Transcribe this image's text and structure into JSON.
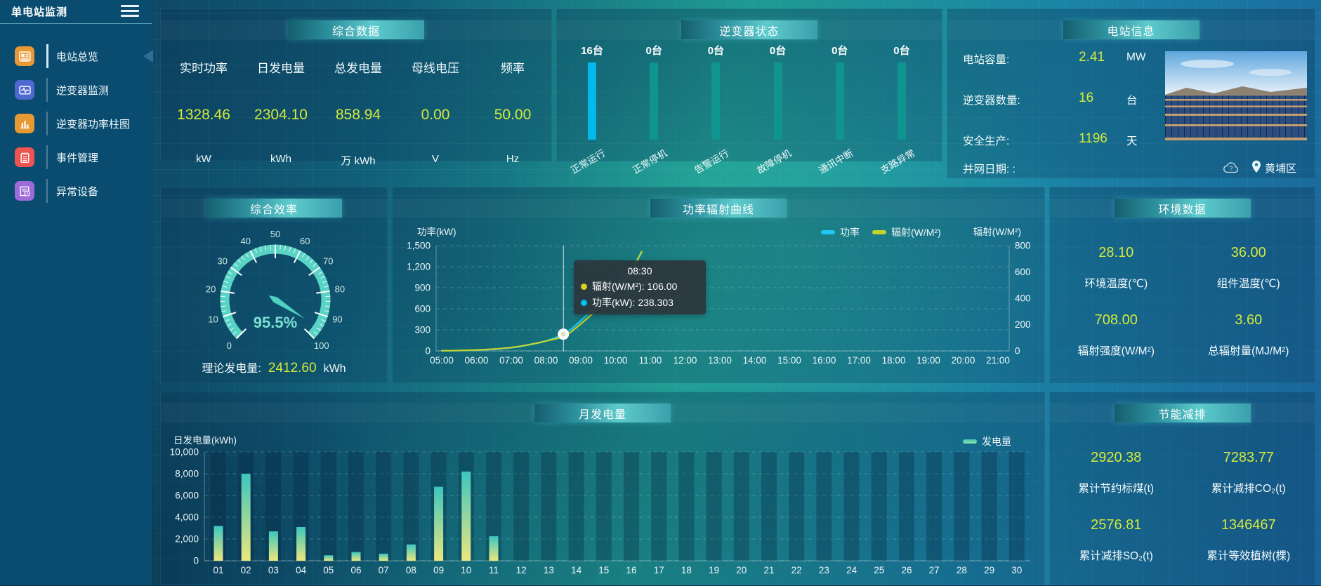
{
  "app": {
    "title": "单电站监测"
  },
  "sidebar": {
    "items": [
      {
        "label": "电站总览",
        "color": "#e79a33",
        "active": true
      },
      {
        "label": "逆变器监测",
        "color": "#5069d0",
        "active": false
      },
      {
        "label": "逆变器功率柱图",
        "color": "#e79a33",
        "active": false
      },
      {
        "label": "事件管理",
        "color": "#ef5350",
        "active": false
      },
      {
        "label": "异常设备",
        "color": "#9c6bd8",
        "active": false
      }
    ]
  },
  "summary": {
    "title": "综合数据",
    "metrics": [
      {
        "label": "实时功率",
        "value": "1328.46",
        "unit": "kW"
      },
      {
        "label": "日发电量",
        "value": "2304.10",
        "unit": "kWh"
      },
      {
        "label": "总发电量",
        "value": "858.94",
        "unit": "万 kWh"
      },
      {
        "label": "母线电压",
        "value": "0.00",
        "unit": "V"
      },
      {
        "label": "频率",
        "value": "50.00",
        "unit": "Hz"
      }
    ]
  },
  "inverter_status": {
    "title": "逆变器状态",
    "bars": [
      {
        "count": "16台",
        "label": "正常运行",
        "color": "#00b7ee"
      },
      {
        "count": "0台",
        "label": "正常停机",
        "color": "#0f948f"
      },
      {
        "count": "0台",
        "label": "告警运行",
        "color": "#0f948f"
      },
      {
        "count": "0台",
        "label": "故障停机",
        "color": "#0f948f"
      },
      {
        "count": "0台",
        "label": "通讯中断",
        "color": "#0f948f"
      },
      {
        "count": "0台",
        "label": "支路异常",
        "color": "#0f948f"
      }
    ]
  },
  "station_info": {
    "title": "电站信息",
    "rows": [
      {
        "label": "电站容量:",
        "value": "2.41",
        "unit": "MW"
      },
      {
        "label": "逆变器数量:",
        "value": "16",
        "unit": "台"
      },
      {
        "label": "安全生产:",
        "value": "1196",
        "unit": "天"
      },
      {
        "label": "并网日期: :",
        "value": "",
        "unit": ""
      }
    ],
    "location": "黄埔区"
  },
  "efficiency": {
    "title": "综合效率",
    "gauge": {
      "min": 0,
      "max": 100,
      "value": 95.5,
      "display": "95.5%",
      "color": "#58d3c5"
    },
    "footer": {
      "label": "理论发电量:",
      "value": "2412.60",
      "unit": "kWh"
    }
  },
  "power_curve": {
    "title": "功率辐射曲线"
  },
  "environment": {
    "title": "环境数据",
    "items": [
      {
        "value": "28.10",
        "label": "环境温度(℃)"
      },
      {
        "value": "36.00",
        "label": "组件温度(℃)"
      },
      {
        "value": "708.00",
        "label": "辐射强度(W/M²)"
      },
      {
        "value": "3.60",
        "label": "总辐射量(MJ/M²)"
      }
    ]
  },
  "monthly": {
    "title": "月发电量"
  },
  "saving": {
    "title": "节能减排",
    "items": [
      {
        "value": "2920.38",
        "label": "累计节约标煤(t)"
      },
      {
        "value": "7283.77",
        "label": "累计减排CO₂(t)"
      },
      {
        "value": "2576.81",
        "label": "累计减排SO₂(t)"
      },
      {
        "value": "1346467",
        "label": "累计等效植树(棵)"
      }
    ]
  },
  "chart_data": [
    {
      "id": "power_radiation",
      "type": "line",
      "title": "功率辐射曲线",
      "ylabel_left": "功率(kW)",
      "ylabel_right": "辐射(W/M²)",
      "ylim_left": [
        0,
        1500
      ],
      "yticks_left": [
        "1,500",
        "1,200",
        "900",
        "600",
        "300",
        "0"
      ],
      "ylim_right": [
        0,
        800
      ],
      "yticks_right": [
        "800",
        "600",
        "400",
        "200",
        "0"
      ],
      "xticks": [
        "05:00",
        "06:00",
        "07:00",
        "08:00",
        "09:00",
        "10:00",
        "11:00",
        "12:00",
        "13:00",
        "14:00",
        "15:00",
        "16:00",
        "17:00",
        "18:00",
        "19:00",
        "20:00",
        "21:00"
      ],
      "legend": [
        {
          "name": "功率",
          "color": "#1ec9f2"
        },
        {
          "name": "辐射(W/M²)",
          "color": "#c6d32c"
        }
      ],
      "series": [
        {
          "name": "功率",
          "axis": "left",
          "color": "#1ec9f2",
          "points": [
            [
              5,
              2
            ],
            [
              5.25,
              3
            ],
            [
              5.5,
              5
            ],
            [
              5.75,
              8
            ],
            [
              6,
              12
            ],
            [
              6.25,
              17
            ],
            [
              6.5,
              24
            ],
            [
              6.75,
              33
            ],
            [
              7,
              45
            ],
            [
              7.25,
              62
            ],
            [
              7.5,
              85
            ],
            [
              7.75,
              110
            ],
            [
              8,
              140
            ],
            [
              8.25,
              185
            ],
            [
              8.5,
              238.303
            ],
            [
              8.75,
              320
            ],
            [
              9,
              430
            ],
            [
              9.25,
              545
            ],
            [
              9.5,
              660
            ],
            [
              9.75,
              790
            ],
            [
              10,
              925
            ],
            [
              10.25,
              1065
            ],
            [
              10.5,
              1215
            ],
            [
              10.75,
              1400
            ]
          ]
        },
        {
          "name": "辐射(W/M²)",
          "axis": "right",
          "color": "#c6d32c",
          "points": [
            [
              5,
              1
            ],
            [
              5.25,
              2
            ],
            [
              5.5,
              3
            ],
            [
              5.75,
              5
            ],
            [
              6,
              7
            ],
            [
              6.25,
              10
            ],
            [
              6.5,
              14
            ],
            [
              6.75,
              19
            ],
            [
              7,
              26
            ],
            [
              7.25,
              35
            ],
            [
              7.5,
              47
            ],
            [
              7.75,
              60
            ],
            [
              8,
              75
            ],
            [
              8.25,
              90
            ],
            [
              8.5,
              106
            ],
            [
              8.75,
              150
            ],
            [
              9,
              205
            ],
            [
              9.25,
              262
            ],
            [
              9.5,
              322
            ],
            [
              9.75,
              388
            ],
            [
              10,
              458
            ],
            [
              10.25,
              532
            ],
            [
              10.5,
              615
            ],
            [
              10.75,
              755
            ]
          ]
        }
      ],
      "crosshair_x": 8.5,
      "tooltip": {
        "time": "08:30",
        "rows": [
          {
            "color": "#d6d21f",
            "text": "辐射(W/M²): 106.00"
          },
          {
            "color": "#00c0f5",
            "text": "功率(kW): 238.303"
          }
        ]
      }
    },
    {
      "id": "monthly_generation",
      "type": "bar",
      "title": "月发电量",
      "ylabel": "日发电量(kWh)",
      "ylim": [
        0,
        10000
      ],
      "yticks": [
        "10,000",
        "8,000",
        "6,000",
        "4,000",
        "2,000",
        "0"
      ],
      "categories": [
        "01",
        "02",
        "03",
        "04",
        "05",
        "06",
        "07",
        "08",
        "09",
        "10",
        "11",
        "12",
        "13",
        "14",
        "15",
        "16",
        "17",
        "18",
        "19",
        "20",
        "21",
        "22",
        "23",
        "24",
        "25",
        "26",
        "27",
        "28",
        "29",
        "30"
      ],
      "values": [
        3200,
        8000,
        2700,
        3100,
        500,
        800,
        650,
        1500,
        6800,
        8200,
        2250,
        0,
        0,
        0,
        0,
        0,
        0,
        0,
        0,
        0,
        0,
        0,
        0,
        0,
        0,
        0,
        0,
        0,
        0,
        0
      ],
      "legend": [
        {
          "name": "发电量",
          "color": "#52c7a6"
        }
      ],
      "bar_gradient": [
        "#3cc6bf",
        "#ece77d"
      ]
    }
  ]
}
